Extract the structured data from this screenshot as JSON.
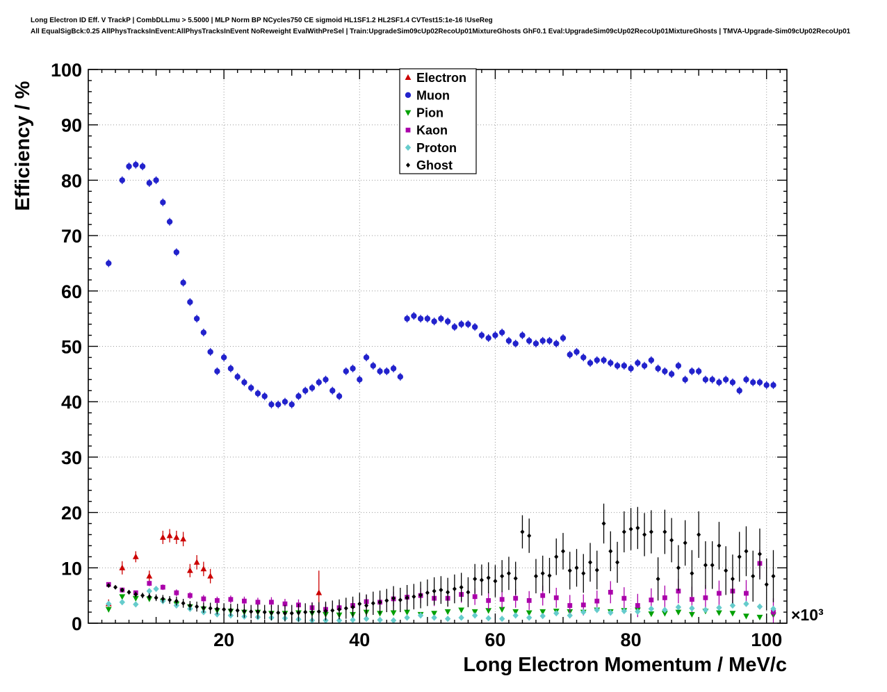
{
  "header": {
    "line1": "Long Electron ID Eff. V TrackP | CombDLLmu > 5.5000 | MLP Norm BP NCycles750 CE sigmoid HL1SF1.2 HL2SF1.4 CVTest15:1e-16 !UseReg",
    "line2": "All EqualSigBck:0.25 AllPhysTracksInEvent:AllPhysTracksInEvent NoReweight EvalWithPreSel | Train:UpgradeSim09cUp02RecoUp01MixtureGhosts GhF0.1 Eval:UpgradeSim09cUp02RecoUp01MixtureGhosts | TMVA-Upgrade-Sim09cUp02RecoUp01"
  },
  "chart_data": {
    "type": "scatter",
    "title": "",
    "xlabel": "Long Electron Momentum / MeV/c",
    "ylabel": "Efficiency / %",
    "x_scale_label": "×10³",
    "xlim": [
      0,
      103
    ],
    "ylim": [
      0,
      100
    ],
    "xticks": [
      20,
      40,
      60,
      80,
      100
    ],
    "yticks": [
      0,
      10,
      20,
      30,
      40,
      50,
      60,
      70,
      80,
      90,
      100
    ],
    "grid": "dotted",
    "legend_position": "top-center",
    "series": [
      {
        "name": "Electron",
        "marker": "triangle-up",
        "color": "#cc0000",
        "x": [
          3,
          5,
          7,
          9,
          11,
          12,
          13,
          14,
          15,
          16,
          17,
          18,
          34,
          50
        ],
        "y": [
          3.5,
          10,
          12,
          8.5,
          15.5,
          15.8,
          15.5,
          15.2,
          9.5,
          11,
          9.8,
          8.5,
          5.5,
          100
        ],
        "yerr": [
          0.8,
          1.2,
          1,
          1,
          1.2,
          1.2,
          1.2,
          1.3,
          1.2,
          1.3,
          1.3,
          1.3,
          4,
          1.5
        ]
      },
      {
        "name": "Muon",
        "marker": "circle",
        "color": "#2222cc",
        "x": [
          3,
          5,
          6,
          7,
          8,
          9,
          10,
          11,
          12,
          13,
          14,
          15,
          16,
          17,
          18,
          19,
          20,
          21,
          22,
          23,
          24,
          25,
          26,
          27,
          28,
          29,
          30,
          31,
          32,
          33,
          34,
          35,
          36,
          37,
          38,
          39,
          40,
          41,
          42,
          43,
          44,
          45,
          46,
          47,
          48,
          49,
          50,
          51,
          52,
          53,
          54,
          55,
          56,
          57,
          58,
          59,
          60,
          61,
          62,
          63,
          64,
          65,
          66,
          67,
          68,
          69,
          70,
          71,
          72,
          73,
          74,
          75,
          76,
          77,
          78,
          79,
          80,
          81,
          82,
          83,
          84,
          85,
          86,
          87,
          88,
          89,
          90,
          91,
          92,
          93,
          94,
          95,
          96,
          97,
          98,
          99,
          100,
          101
        ],
        "y": [
          65,
          80,
          82.5,
          82.8,
          82.5,
          79.5,
          80,
          76,
          72.5,
          67,
          61.5,
          58,
          55,
          52.5,
          49,
          45.5,
          48,
          46,
          44.5,
          43.5,
          42.5,
          41.5,
          41,
          39.5,
          39.5,
          40,
          39.5,
          41,
          42,
          42.5,
          43.5,
          44,
          42,
          41,
          45.5,
          46,
          44,
          48,
          46.5,
          45.5,
          45.5,
          46,
          44.5,
          55,
          55.5,
          55,
          55,
          54.5,
          55,
          54.5,
          53.5,
          54,
          54,
          53.5,
          52,
          51.5,
          52,
          52.5,
          51,
          50.5,
          52,
          51,
          50.5,
          51,
          51,
          50.5,
          51.5,
          48.5,
          49,
          48,
          47,
          47.5,
          47.5,
          47,
          46.5,
          46.5,
          46,
          47,
          46.5,
          47.5,
          46,
          45.5,
          45,
          46.5,
          44,
          45.5,
          45.5,
          44,
          44,
          43.5,
          44,
          43.5,
          42,
          44,
          43.5,
          43.5,
          43,
          43
        ],
        "yerr_const": 0.7
      },
      {
        "name": "Pion",
        "marker": "triangle-down",
        "color": "#00a000",
        "x": [
          3,
          5,
          7,
          9,
          11,
          13,
          15,
          17,
          19,
          21,
          23,
          25,
          27,
          29,
          31,
          33,
          35,
          37,
          39,
          41,
          43,
          45,
          47,
          49,
          51,
          53,
          55,
          57,
          59,
          61,
          63,
          65,
          67,
          69,
          71,
          73,
          75,
          77,
          79,
          81,
          83,
          85,
          87,
          89,
          91,
          93,
          95,
          97,
          99,
          101
        ],
        "y": [
          2.5,
          4.8,
          4.5,
          4.4,
          4,
          3.5,
          3,
          2.6,
          2.3,
          2.2,
          2,
          2,
          1.8,
          1.8,
          1.9,
          1.8,
          1.6,
          1.5,
          1.6,
          2,
          1.8,
          1.9,
          2,
          1.6,
          1.8,
          2.1,
          2.4,
          2.1,
          2.3,
          2.5,
          2.1,
          1.9,
          2.1,
          2.2,
          2.1,
          2,
          2.4,
          2.1,
          2.3,
          2.4,
          1.7,
          1.8,
          2,
          1.6,
          2.2,
          1.9,
          1.8,
          1.3,
          1.1,
          1.5
        ],
        "yerr_const": 0.3
      },
      {
        "name": "Kaon",
        "marker": "square",
        "color": "#aa00aa",
        "x": [
          3,
          5,
          7,
          9,
          11,
          13,
          15,
          17,
          19,
          21,
          23,
          25,
          27,
          29,
          31,
          33,
          35,
          37,
          39,
          41,
          43,
          45,
          47,
          49,
          51,
          53,
          55,
          57,
          59,
          61,
          63,
          65,
          67,
          69,
          71,
          73,
          75,
          77,
          79,
          81,
          83,
          85,
          87,
          89,
          91,
          93,
          95,
          97,
          99,
          101
        ],
        "y": [
          7,
          6,
          5.5,
          7.2,
          6.5,
          5.5,
          5,
          4.4,
          4.1,
          4.3,
          4,
          3.8,
          3.8,
          3.5,
          3.3,
          2.8,
          2.5,
          2.8,
          3.2,
          3.9,
          3.8,
          4.4,
          4.7,
          5,
          4.5,
          4.5,
          5.2,
          4.8,
          4.1,
          4.3,
          4.5,
          4.1,
          5,
          4.6,
          3.2,
          3.3,
          4,
          5.6,
          4.5,
          3.2,
          4.2,
          4.6,
          5.8,
          4.3,
          4.6,
          5.4,
          5.8,
          5.4,
          10.8,
          2
        ],
        "yerr": [
          0.4,
          0.4,
          0.4,
          0.5,
          0.5,
          0.6,
          0.6,
          0.7,
          0.7,
          0.7,
          0.8,
          0.8,
          0.9,
          0.9,
          1,
          1,
          1.1,
          1.1,
          1.1,
          1.2,
          1.2,
          1.3,
          1.3,
          1.4,
          1.4,
          1.5,
          1.5,
          1.5,
          1.6,
          1.6,
          1.7,
          1.7,
          1.8,
          1.8,
          1.9,
          1.9,
          1.9,
          2,
          2,
          2.1,
          2.1,
          2.2,
          2.2,
          2.3,
          2.3,
          2.3,
          2.4,
          2.4,
          2.5,
          2.5
        ]
      },
      {
        "name": "Proton",
        "marker": "diamond",
        "color": "#66cccc",
        "x": [
          3,
          5,
          7,
          9,
          10,
          11,
          13,
          15,
          17,
          19,
          21,
          23,
          25,
          27,
          29,
          31,
          33,
          35,
          37,
          39,
          41,
          43,
          45,
          47,
          49,
          51,
          53,
          55,
          57,
          59,
          61,
          63,
          65,
          67,
          69,
          71,
          73,
          75,
          77,
          79,
          81,
          83,
          85,
          87,
          89,
          91,
          93,
          95,
          97,
          99,
          101
        ],
        "y": [
          3.5,
          3.8,
          3.4,
          5.8,
          6.2,
          4,
          3.2,
          2.6,
          2,
          1.6,
          1.4,
          1.2,
          1.1,
          1,
          0.9,
          0.7,
          0.5,
          0.5,
          0.5,
          0.6,
          0.8,
          0.6,
          0.5,
          1,
          1.4,
          1,
          0.8,
          1,
          1.4,
          0.9,
          0.8,
          1.4,
          1,
          1.3,
          1.8,
          1.4,
          2,
          2.4,
          1.9,
          2.2,
          2.1,
          2.6,
          2.4,
          2.9,
          2.7,
          2.4,
          2.8,
          3.2,
          3.5,
          3,
          2.6
        ],
        "yerr_const": 0.35
      },
      {
        "name": "Ghost",
        "marker": "small-diamond",
        "color": "#000000",
        "x": [
          3,
          4,
          5,
          6,
          7,
          8,
          9,
          10,
          11,
          12,
          13,
          14,
          15,
          16,
          17,
          18,
          19,
          20,
          21,
          22,
          23,
          24,
          25,
          26,
          27,
          28,
          29,
          30,
          31,
          32,
          33,
          34,
          35,
          36,
          37,
          38,
          39,
          40,
          41,
          42,
          43,
          44,
          45,
          46,
          47,
          48,
          49,
          50,
          51,
          52,
          53,
          54,
          55,
          56,
          57,
          58,
          59,
          60,
          61,
          62,
          63,
          64,
          65,
          66,
          67,
          68,
          69,
          70,
          71,
          72,
          73,
          74,
          75,
          76,
          77,
          78,
          79,
          80,
          81,
          82,
          83,
          84,
          85,
          86,
          87,
          88,
          89,
          90,
          91,
          92,
          93,
          94,
          95,
          96,
          97,
          98,
          99,
          100,
          101
        ],
        "y": [
          6.8,
          6.5,
          6,
          5.6,
          5.2,
          5,
          4.8,
          4.6,
          4.4,
          4.2,
          4,
          3.6,
          3.2,
          3,
          2.8,
          2.7,
          2.6,
          2.5,
          2.4,
          2.3,
          2.2,
          2.1,
          2.1,
          2,
          1.9,
          1.9,
          1.8,
          1.8,
          1.9,
          2,
          2,
          2.1,
          2.2,
          2.3,
          2.5,
          2.7,
          2.9,
          3.5,
          3.2,
          3.6,
          3.8,
          4.1,
          4.5,
          4.2,
          4.6,
          4.8,
          5.1,
          5.5,
          5.8,
          6,
          5.6,
          6.2,
          6.5,
          5.6,
          8,
          7.8,
          8.2,
          7.6,
          8.5,
          9,
          8.1,
          16.5,
          15.8,
          8.5,
          9,
          8.6,
          12,
          13,
          9.5,
          10,
          9,
          11,
          9.6,
          18,
          13,
          11,
          16.5,
          17,
          17.2,
          16,
          16.5,
          8,
          16.5,
          15,
          10,
          14.5,
          9,
          16,
          10.5,
          10.5,
          14,
          9.5,
          8,
          12,
          13,
          8.5,
          12.5,
          7,
          8.5
        ],
        "yerr": [
          0.3,
          0.3,
          0.4,
          0.4,
          0.5,
          0.5,
          0.6,
          0.6,
          0.7,
          0.7,
          0.8,
          0.8,
          0.8,
          0.9,
          0.9,
          1,
          1,
          1.1,
          1.1,
          1.2,
          1.2,
          1.2,
          1.3,
          1.3,
          1.4,
          1.4,
          1.5,
          1.5,
          1.6,
          1.6,
          1.7,
          1.7,
          1.7,
          1.8,
          1.8,
          1.9,
          1.9,
          2,
          2,
          2.1,
          2.1,
          2.1,
          2.2,
          2.2,
          2.3,
          2.3,
          2.4,
          2.4,
          2.5,
          2.5,
          2.6,
          2.6,
          2.6,
          2.7,
          2.7,
          2.8,
          2.8,
          2.9,
          2.9,
          3,
          3,
          3,
          3.1,
          3.1,
          3.2,
          3.2,
          3.3,
          3.3,
          3.4,
          3.4,
          3.5,
          3.5,
          3.5,
          3.6,
          3.6,
          3.7,
          3.7,
          3.8,
          3.8,
          3.9,
          3.9,
          3.9,
          4,
          4,
          4.1,
          4.1,
          4.2,
          4.2,
          4.3,
          4.3,
          4.3,
          4.4,
          4.4,
          4.5,
          4.5,
          4.6,
          4.6,
          4.7,
          4.7
        ]
      }
    ]
  }
}
